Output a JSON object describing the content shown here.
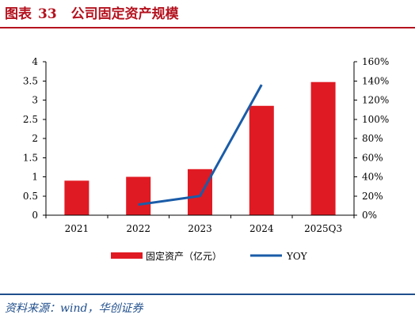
{
  "header": {
    "prefix": "图表",
    "number": "33",
    "title": "公司固定资产规模"
  },
  "source": "资料来源：wind，华创证券",
  "colors": {
    "bar": "#e01a22",
    "line": "#1a5ca8",
    "accent": "#b4121e",
    "source": "#1f4e8c"
  },
  "chart_data": {
    "type": "bar",
    "categories": [
      "2021",
      "2022",
      "2023",
      "2024",
      "2025Q3"
    ],
    "series": [
      {
        "name": "固定资产（亿元）",
        "type": "bar",
        "axis": "left",
        "values": [
          0.9,
          1.0,
          1.2,
          2.85,
          3.47
        ]
      },
      {
        "name": "YOY",
        "type": "line",
        "axis": "right",
        "values": [
          null,
          0.11,
          0.2,
          1.36,
          null
        ]
      }
    ],
    "y_left": {
      "min": 0,
      "max": 4,
      "ticks": [
        "0",
        "0.5",
        "1",
        "1.5",
        "2",
        "2.5",
        "3",
        "3.5",
        "4"
      ]
    },
    "y_right": {
      "min": 0,
      "max": 1.6,
      "ticks": [
        "0%",
        "20%",
        "40%",
        "60%",
        "80%",
        "100%",
        "120%",
        "140%",
        "160%"
      ]
    },
    "grid": false,
    "legend": "bottom"
  }
}
